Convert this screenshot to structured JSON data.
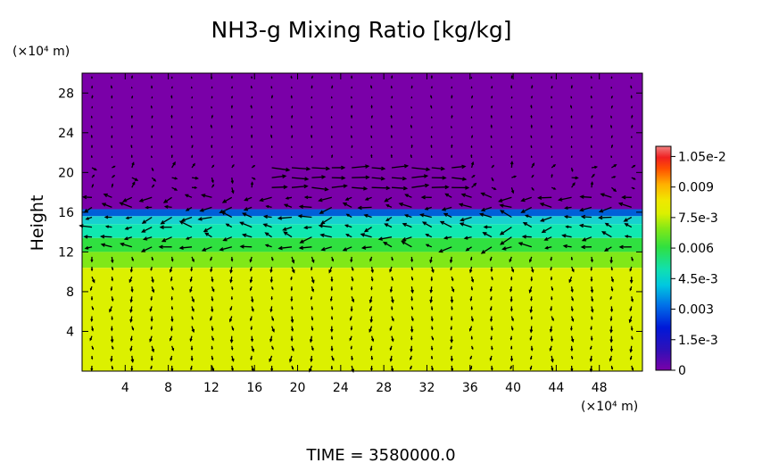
{
  "chart_data": {
    "type": "heatmap",
    "title": "NH3-g Mixing Ratio [kg/kg]",
    "ylabel": "Height",
    "y_unit": "(×10⁴ m)",
    "x_unit": "(×10⁴ m)",
    "footer": "TIME  =  3580000.0",
    "xlim": [
      0,
      52
    ],
    "ylim": [
      0,
      30
    ],
    "x_ticks": [
      "4",
      "8",
      "12",
      "16",
      "20",
      "24",
      "28",
      "32",
      "36",
      "40",
      "44",
      "48"
    ],
    "y_ticks": [
      "4",
      "8",
      "12",
      "16",
      "20",
      "24",
      "28"
    ],
    "colorbar": {
      "range": [
        0,
        0.011
      ],
      "labels": [
        "1.05e-2",
        "0.009",
        "7.5e-3",
        "0.006",
        "4.5e-3",
        "0.003",
        "1.5e-3",
        "0"
      ],
      "label_values": [
        0.0105,
        0.009,
        0.0075,
        0.006,
        0.0045,
        0.003,
        0.0015,
        0
      ]
    },
    "field_layers": [
      {
        "from_height": 16.3,
        "to_height": 30,
        "value": 0,
        "description_color": "#7A00A8"
      },
      {
        "from_height": 15.6,
        "to_height": 16.3,
        "value": 0.0024,
        "description_color": "#0060D8"
      },
      {
        "from_height": 14.8,
        "to_height": 15.6,
        "value": 0.0042,
        "description_color": "#18D0D0"
      },
      {
        "from_height": 13.4,
        "to_height": 14.8,
        "value": 0.0048,
        "description_color": "#10E8B0"
      },
      {
        "from_height": 12.0,
        "to_height": 13.4,
        "value": 0.0058,
        "description_color": "#30E040"
      },
      {
        "from_height": 10.4,
        "to_height": 12.0,
        "value": 0.0066,
        "description_color": "#80E818"
      },
      {
        "from_height": 0,
        "to_height": 10.4,
        "value": 0.0078,
        "description_color": "#DCF000"
      }
    ],
    "vector_field": true
  }
}
